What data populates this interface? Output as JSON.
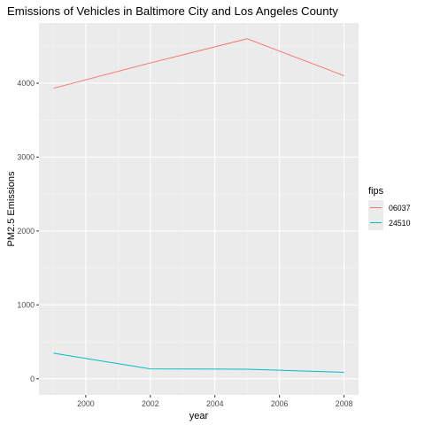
{
  "chart_data": {
    "type": "line",
    "title": "Emissions of Vehicles in Baltimore City and Los Angeles County",
    "xlabel": "year",
    "ylabel": "PM2.5 Emissions",
    "x": [
      1999,
      2002,
      2005,
      2008
    ],
    "xlim": [
      1998.55,
      2008.45
    ],
    "ylim": [
      -218,
      4814
    ],
    "xticks": [
      2000,
      2002,
      2004,
      2006,
      2008
    ],
    "yticks": [
      0,
      1000,
      2000,
      3000,
      4000
    ],
    "grid": true,
    "legend_title": "fips",
    "legend_position": "right",
    "series": [
      {
        "name": "06037",
        "color": "#F8766D",
        "values": [
          3931,
          4274,
          4601,
          4101
        ]
      },
      {
        "name": "24510",
        "color": "#00BFC4",
        "values": [
          347,
          134,
          130,
          88
        ]
      }
    ]
  }
}
